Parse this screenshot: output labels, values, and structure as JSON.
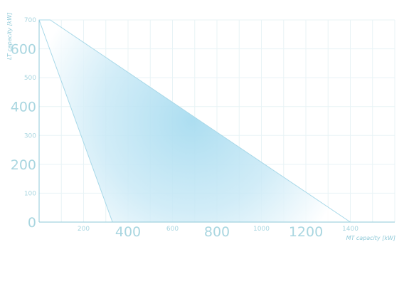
{
  "chart_data": {
    "type": "area",
    "xlabel": "MT capacity [kW]",
    "ylabel": "LT capacity [kW]",
    "xlim": [
      0,
      1600
    ],
    "ylim": [
      0,
      700
    ],
    "x_ticks_major": [
      0,
      400,
      800,
      1200
    ],
    "x_ticks_minor": [
      200,
      600,
      1000,
      1400
    ],
    "y_ticks_major": [
      0,
      200,
      400,
      600
    ],
    "y_ticks_minor": [
      100,
      300,
      500,
      700
    ],
    "grid": true,
    "region": {
      "x": [
        0,
        50,
        1400,
        330
      ],
      "y": [
        700,
        700,
        0,
        0
      ]
    },
    "colors": {
      "fill_dark": "#a8dcf0",
      "fill_light": "#ffffff",
      "edge": "#a7d8e8",
      "axis": "#8fc9d8",
      "grid": "#e8f3f6"
    }
  }
}
